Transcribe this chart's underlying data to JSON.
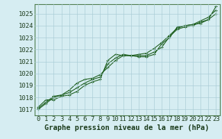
{
  "xlabel": "Graphe pression niveau de la mer (hPa)",
  "background_color": "#d6edf2",
  "grid_color": "#aacdd6",
  "line_color": "#1a5c1a",
  "hours": [
    0,
    1,
    2,
    3,
    4,
    5,
    6,
    7,
    8,
    9,
    10,
    11,
    12,
    13,
    14,
    15,
    16,
    17,
    18,
    19,
    20,
    21,
    22,
    23
  ],
  "line1": [
    1017.2,
    1017.8,
    1017.8,
    1018.1,
    1018.2,
    1018.5,
    1019.0,
    1019.3,
    1019.5,
    1021.1,
    1021.6,
    1021.5,
    1021.5,
    1021.4,
    1021.4,
    1021.6,
    1022.5,
    1023.0,
    1023.9,
    1024.0,
    1024.1,
    1024.2,
    1024.5,
    1025.6
  ],
  "line2": [
    1017.0,
    1017.5,
    1018.0,
    1018.2,
    1018.6,
    1019.2,
    1019.5,
    1019.6,
    1019.9,
    1020.5,
    1021.1,
    1021.5,
    1021.5,
    1021.5,
    1021.5,
    1021.8,
    1022.2,
    1023.1,
    1023.7,
    1023.9,
    1024.0,
    1024.3,
    1024.5,
    1025.0
  ],
  "line3": [
    1017.1,
    1017.6,
    1018.1,
    1018.2,
    1018.4,
    1018.8,
    1019.2,
    1019.5,
    1019.7,
    1020.8,
    1021.3,
    1021.6,
    1021.5,
    1021.6,
    1021.7,
    1022.1,
    1022.6,
    1023.2,
    1023.8,
    1024.0,
    1024.1,
    1024.4,
    1024.7,
    1025.3
  ],
  "ylim_min": 1016.5,
  "ylim_max": 1025.8,
  "yticks": [
    1017,
    1018,
    1019,
    1020,
    1021,
    1022,
    1023,
    1024,
    1025
  ],
  "xticks": [
    0,
    1,
    2,
    3,
    4,
    5,
    6,
    7,
    8,
    9,
    10,
    11,
    12,
    13,
    14,
    15,
    16,
    17,
    18,
    19,
    20,
    21,
    22,
    23
  ],
  "spine_color": "#4a7a4a",
  "tick_fontsize": 6.5,
  "xlabel_fontsize": 7.5
}
